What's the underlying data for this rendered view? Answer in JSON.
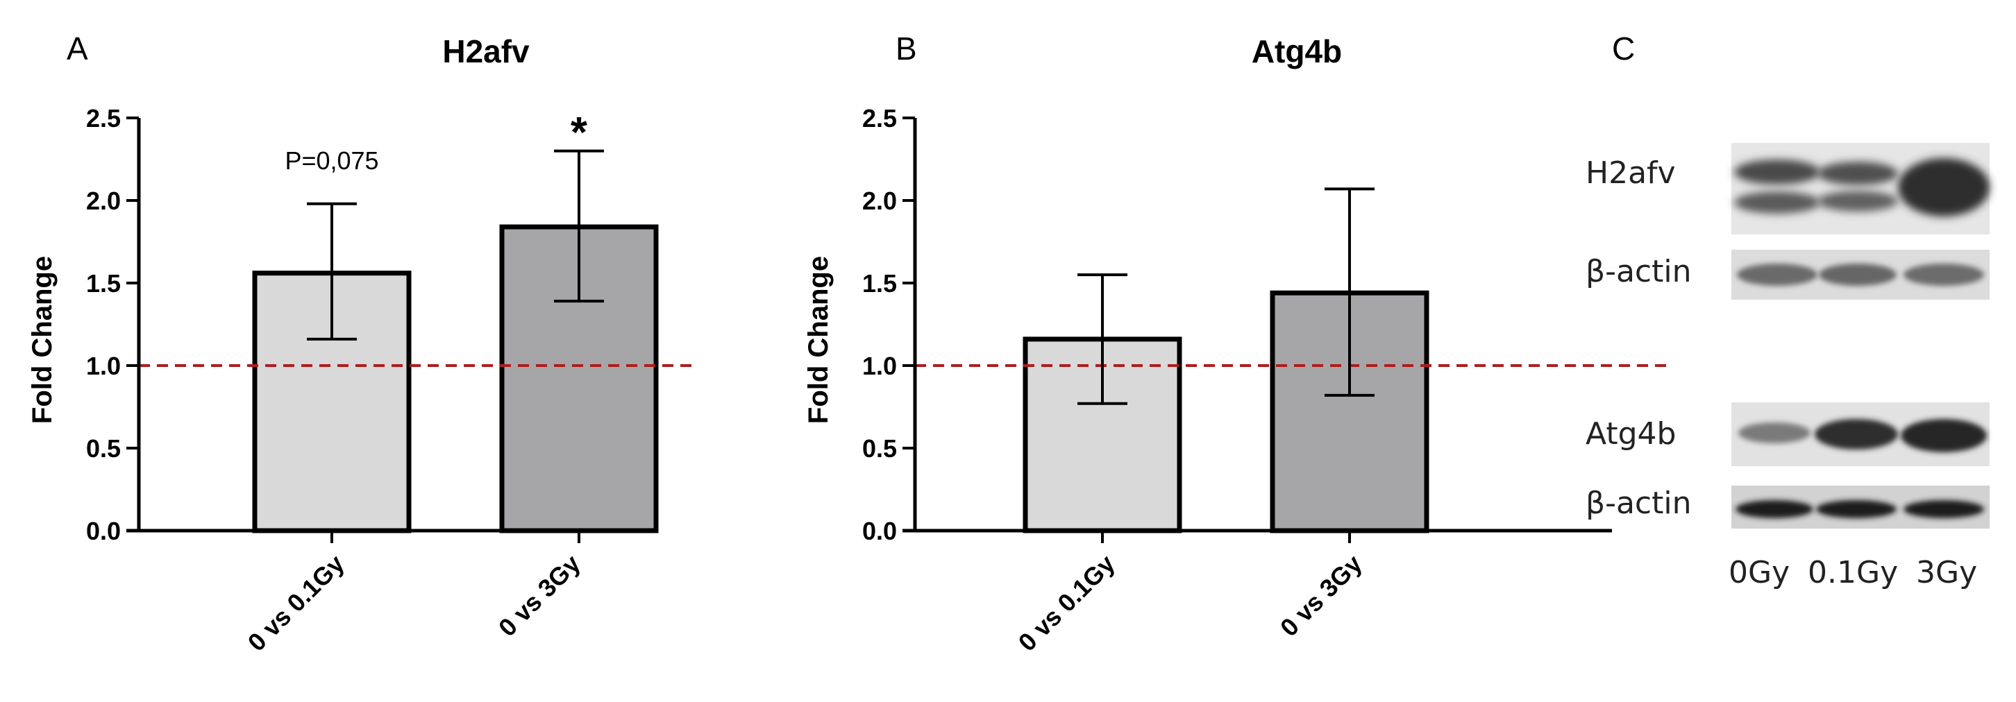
{
  "figure": {
    "panel_letters": [
      "A",
      "B",
      "C"
    ]
  },
  "chart_data": [
    {
      "type": "bar",
      "panel": "A",
      "title": "H2afv",
      "ylabel": "Fold Change",
      "xlabel": "",
      "categories": [
        "0 vs 0.1Gy",
        "0 vs 3Gy"
      ],
      "values": [
        1.56,
        1.84
      ],
      "error_upper": [
        1.98,
        2.3
      ],
      "error_lower": [
        1.16,
        1.39
      ],
      "bar_colors": [
        "#d9d9d9",
        "#a6a6a9"
      ],
      "ylim": [
        0.0,
        2.5
      ],
      "yticks": [
        "0.0",
        "0.5",
        "1.0",
        "1.5",
        "2.0",
        "2.5"
      ],
      "reference_line": {
        "y": 1.0,
        "color": "#b01c1c",
        "style": "dashed"
      },
      "annotations": [
        "P=0,075",
        "*"
      ]
    },
    {
      "type": "bar",
      "panel": "B",
      "title": "Atg4b",
      "ylabel": "Fold Change",
      "xlabel": "",
      "categories": [
        "0 vs 0.1Gy",
        "0 vs 3Gy"
      ],
      "values": [
        1.16,
        1.44
      ],
      "error_upper": [
        1.55,
        2.07
      ],
      "error_lower": [
        0.77,
        0.82
      ],
      "bar_colors": [
        "#d9d9d9",
        "#a6a6a9"
      ],
      "ylim": [
        0.0,
        2.5
      ],
      "yticks": [
        "0.0",
        "0.5",
        "1.0",
        "1.5",
        "2.0",
        "2.5"
      ],
      "reference_line": {
        "y": 1.0,
        "color": "#b01c1c",
        "style": "dashed"
      },
      "annotations": []
    }
  ],
  "blots": {
    "panel": "C",
    "rows": [
      {
        "label": "H2afv"
      },
      {
        "label": "β-actin"
      },
      {
        "label": "Atg4b"
      },
      {
        "label": "β-actin"
      }
    ],
    "lanes": [
      "0Gy",
      "0.1Gy",
      "3Gy"
    ]
  }
}
